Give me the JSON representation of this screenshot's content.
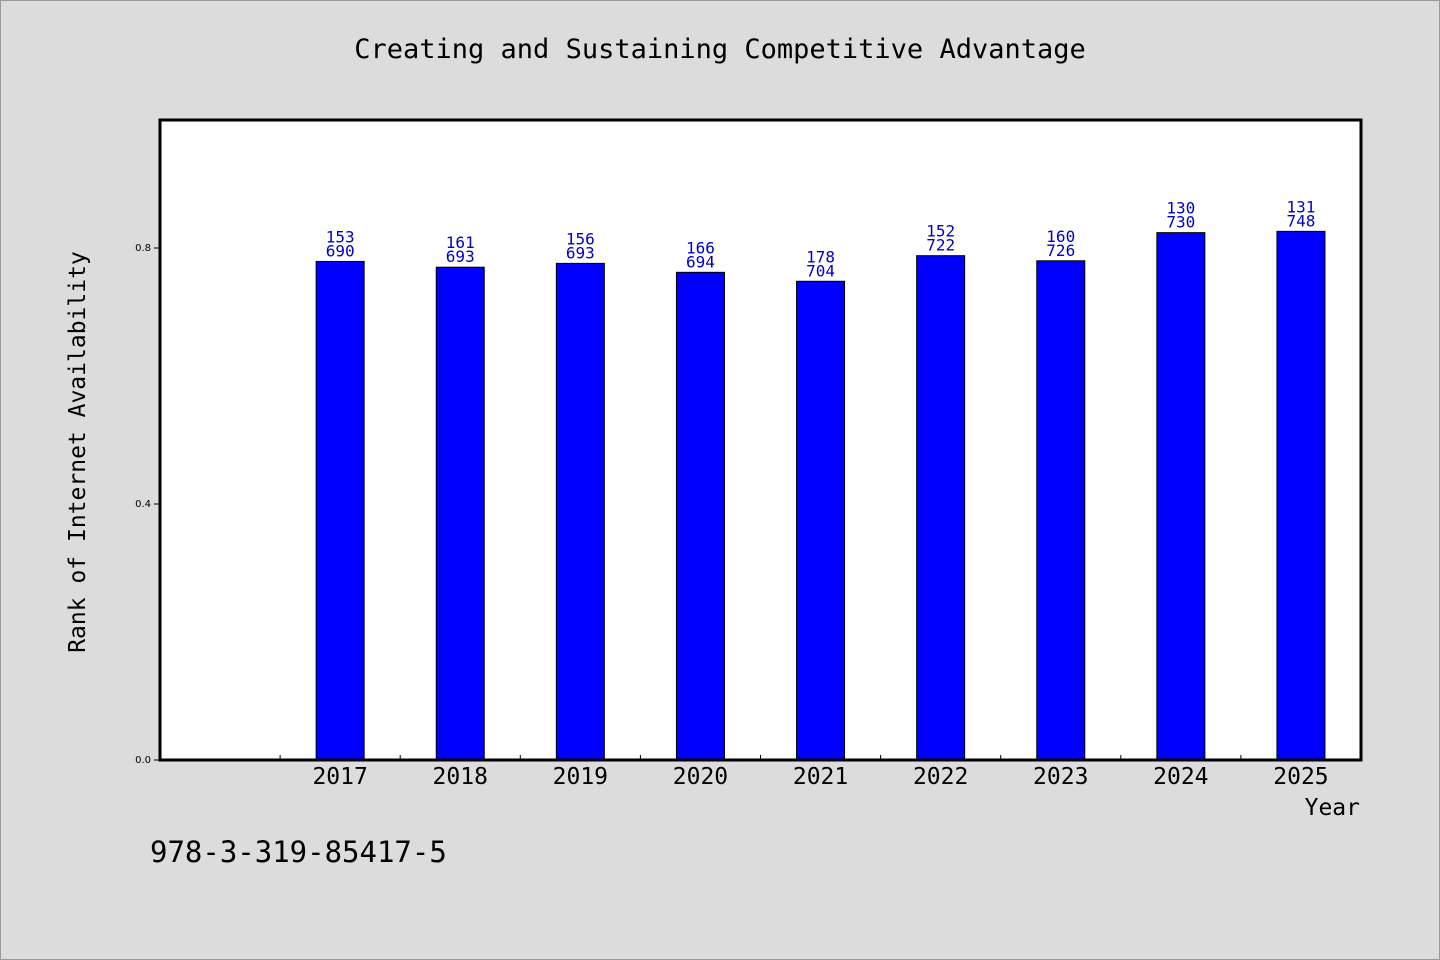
{
  "chart_data": {
    "type": "bar",
    "title": "Creating and Sustaining Competitive Advantage",
    "xlabel": "Year",
    "ylabel": "Rank of Internet Availability",
    "categories": [
      "2017",
      "2018",
      "2019",
      "2020",
      "2021",
      "2022",
      "2023",
      "2024",
      "2025"
    ],
    "values": [
      0.779,
      0.77,
      0.776,
      0.762,
      0.748,
      0.788,
      0.78,
      0.824,
      0.826
    ],
    "data_labels": [
      [
        "153",
        "690"
      ],
      [
        "161",
        "693"
      ],
      [
        "156",
        "693"
      ],
      [
        "166",
        "694"
      ],
      [
        "178",
        "704"
      ],
      [
        "152",
        "722"
      ],
      [
        "160",
        "726"
      ],
      [
        "130",
        "730"
      ],
      [
        "131",
        "748"
      ]
    ],
    "yticks": [
      "0.0",
      "0.4",
      "0.8"
    ],
    "ytick_values": [
      0.0,
      0.4,
      0.8
    ],
    "ylim": [
      0,
      1.0
    ],
    "x_slots": 10,
    "first_category_slot": 1,
    "grid": false,
    "bar_color": "#0000ff",
    "label_color": "#0000cc"
  },
  "footer": {
    "isbn": "978-3-319-85417-5"
  }
}
